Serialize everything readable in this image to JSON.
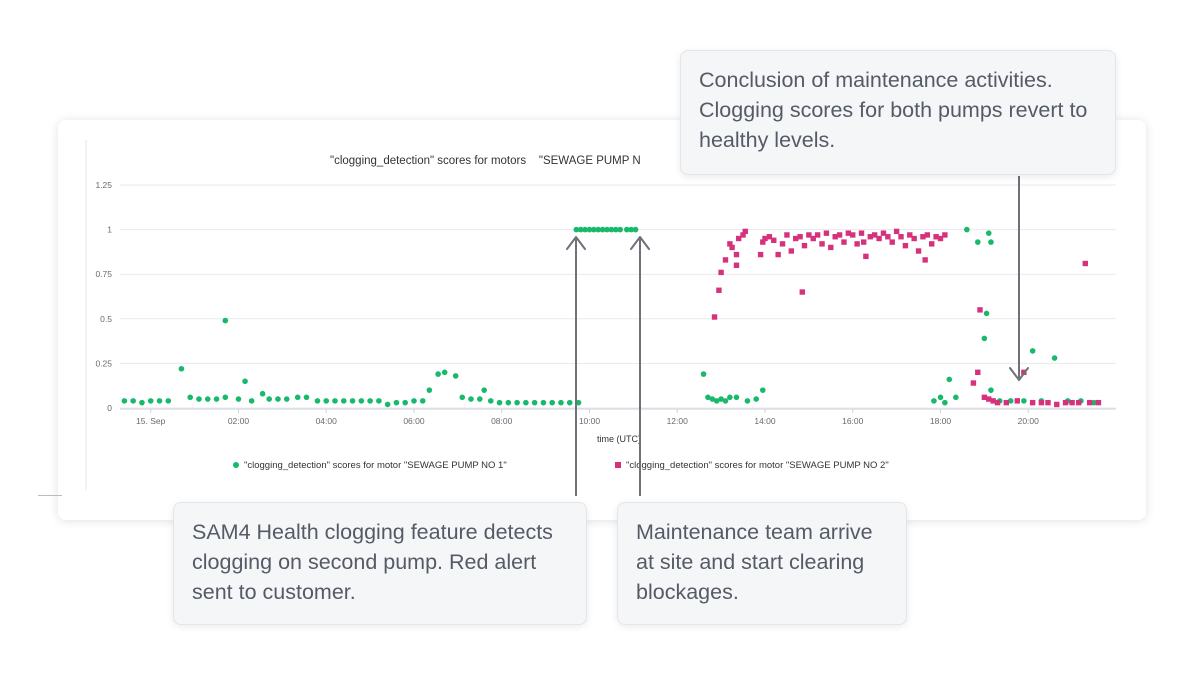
{
  "chart_data": {
    "type": "scatter",
    "title": "\"clogging_detection\" scores for motors    \"SEWAGE PUMP N",
    "xlabel": "time (UTC)",
    "ylabel": "",
    "x_unit": "hours",
    "xlim": [
      -0.7,
      22.0
    ],
    "ylim": [
      0,
      1.25
    ],
    "grid": true,
    "legend_position": "bottom",
    "y_ticks": [
      "0",
      "0.25",
      "0.5",
      "0.75",
      "1",
      "1.25"
    ],
    "x_ticks": [
      {
        "value": 0,
        "label": "15. Sep"
      },
      {
        "value": 2,
        "label": "02:00"
      },
      {
        "value": 4,
        "label": "04:00"
      },
      {
        "value": 6,
        "label": "06:00"
      },
      {
        "value": 8,
        "label": "08:00"
      },
      {
        "value": 10,
        "label": "10:00"
      },
      {
        "value": 12,
        "label": "12:00"
      },
      {
        "value": 14,
        "label": "14:00"
      },
      {
        "value": 16,
        "label": "16:00"
      },
      {
        "value": 18,
        "label": "18:00"
      },
      {
        "value": 20,
        "label": "20:00"
      }
    ],
    "series": [
      {
        "name": "\"clogging_detection\" scores for motor \"SEWAGE PUMP NO 1\"",
        "color": "#18b96b",
        "marker": "circle",
        "points": [
          [
            -0.6,
            0.04
          ],
          [
            -0.4,
            0.04
          ],
          [
            -0.2,
            0.03
          ],
          [
            0.0,
            0.04
          ],
          [
            0.2,
            0.04
          ],
          [
            0.4,
            0.04
          ],
          [
            0.7,
            0.22
          ],
          [
            0.9,
            0.06
          ],
          [
            1.1,
            0.05
          ],
          [
            1.3,
            0.05
          ],
          [
            1.5,
            0.05
          ],
          [
            1.7,
            0.06
          ],
          [
            2.0,
            0.05
          ],
          [
            1.7,
            0.49
          ],
          [
            2.15,
            0.15
          ],
          [
            2.3,
            0.04
          ],
          [
            2.55,
            0.08
          ],
          [
            2.7,
            0.05
          ],
          [
            2.9,
            0.05
          ],
          [
            3.1,
            0.05
          ],
          [
            3.35,
            0.06
          ],
          [
            3.55,
            0.06
          ],
          [
            3.8,
            0.04
          ],
          [
            4.0,
            0.04
          ],
          [
            4.2,
            0.04
          ],
          [
            4.4,
            0.04
          ],
          [
            4.6,
            0.04
          ],
          [
            4.8,
            0.04
          ],
          [
            5.0,
            0.04
          ],
          [
            5.2,
            0.04
          ],
          [
            5.4,
            0.02
          ],
          [
            5.6,
            0.03
          ],
          [
            5.8,
            0.03
          ],
          [
            6.0,
            0.04
          ],
          [
            6.2,
            0.04
          ],
          [
            6.35,
            0.1
          ],
          [
            6.55,
            0.19
          ],
          [
            6.7,
            0.2
          ],
          [
            6.95,
            0.18
          ],
          [
            7.1,
            0.06
          ],
          [
            7.3,
            0.05
          ],
          [
            7.5,
            0.05
          ],
          [
            7.6,
            0.1
          ],
          [
            7.75,
            0.04
          ],
          [
            7.95,
            0.03
          ],
          [
            8.15,
            0.03
          ],
          [
            8.35,
            0.03
          ],
          [
            8.55,
            0.03
          ],
          [
            8.75,
            0.03
          ],
          [
            8.95,
            0.03
          ],
          [
            9.15,
            0.03
          ],
          [
            9.35,
            0.03
          ],
          [
            9.55,
            0.03
          ],
          [
            9.75,
            0.03
          ],
          [
            9.7,
            1.0
          ],
          [
            9.8,
            1.0
          ],
          [
            9.9,
            1.0
          ],
          [
            10.0,
            1.0
          ],
          [
            10.1,
            1.0
          ],
          [
            10.2,
            1.0
          ],
          [
            10.3,
            1.0
          ],
          [
            10.4,
            1.0
          ],
          [
            10.5,
            1.0
          ],
          [
            10.6,
            1.0
          ],
          [
            10.7,
            1.0
          ],
          [
            10.85,
            1.0
          ],
          [
            10.95,
            1.0
          ],
          [
            11.05,
            1.0
          ],
          [
            12.6,
            0.19
          ],
          [
            12.7,
            0.06
          ],
          [
            12.8,
            0.05
          ],
          [
            12.9,
            0.04
          ],
          [
            13.0,
            0.05
          ],
          [
            13.1,
            0.04
          ],
          [
            13.2,
            0.06
          ],
          [
            13.35,
            0.06
          ],
          [
            13.6,
            0.04
          ],
          [
            13.8,
            0.05
          ],
          [
            13.95,
            0.1
          ],
          [
            17.85,
            0.04
          ],
          [
            18.0,
            0.06
          ],
          [
            18.2,
            0.16
          ],
          [
            18.1,
            0.03
          ],
          [
            18.35,
            0.06
          ],
          [
            18.6,
            1.0
          ],
          [
            18.85,
            0.93
          ],
          [
            19.1,
            0.98
          ],
          [
            19.15,
            0.93
          ],
          [
            19.05,
            0.53
          ],
          [
            19.0,
            0.39
          ],
          [
            19.15,
            0.1
          ],
          [
            19.35,
            0.04
          ],
          [
            19.6,
            0.04
          ],
          [
            19.9,
            0.04
          ],
          [
            20.1,
            0.32
          ],
          [
            20.3,
            0.04
          ],
          [
            20.6,
            0.28
          ],
          [
            20.9,
            0.04
          ],
          [
            21.2,
            0.04
          ],
          [
            21.5,
            0.03
          ]
        ]
      },
      {
        "name": "\"clogging_detection\" scores for motor \"SEWAGE PUMP NO 2\"",
        "color": "#d6317d",
        "marker": "square",
        "points": [
          [
            12.85,
            0.51
          ],
          [
            12.95,
            0.66
          ],
          [
            13.0,
            0.76
          ],
          [
            13.1,
            0.83
          ],
          [
            13.2,
            0.92
          ],
          [
            13.25,
            0.9
          ],
          [
            13.35,
            0.8
          ],
          [
            13.4,
            0.95
          ],
          [
            13.5,
            0.97
          ],
          [
            13.55,
            0.99
          ],
          [
            13.35,
            0.86
          ],
          [
            13.9,
            0.86
          ],
          [
            13.95,
            0.93
          ],
          [
            14.0,
            0.95
          ],
          [
            14.1,
            0.96
          ],
          [
            14.2,
            0.94
          ],
          [
            14.3,
            0.86
          ],
          [
            14.4,
            0.92
          ],
          [
            14.5,
            0.97
          ],
          [
            14.6,
            0.88
          ],
          [
            14.7,
            0.95
          ],
          [
            14.8,
            0.96
          ],
          [
            14.9,
            0.91
          ],
          [
            15.0,
            0.97
          ],
          [
            14.85,
            0.65
          ],
          [
            15.1,
            0.95
          ],
          [
            15.2,
            0.97
          ],
          [
            15.3,
            0.92
          ],
          [
            15.4,
            0.98
          ],
          [
            15.5,
            0.9
          ],
          [
            15.6,
            0.96
          ],
          [
            15.7,
            0.97
          ],
          [
            15.8,
            0.93
          ],
          [
            15.9,
            0.98
          ],
          [
            16.0,
            0.97
          ],
          [
            16.1,
            0.92
          ],
          [
            16.2,
            0.98
          ],
          [
            16.3,
            0.85
          ],
          [
            16.4,
            0.96
          ],
          [
            16.5,
            0.97
          ],
          [
            16.6,
            0.95
          ],
          [
            16.7,
            0.98
          ],
          [
            16.8,
            0.96
          ],
          [
            16.9,
            0.93
          ],
          [
            17.0,
            0.99
          ],
          [
            17.1,
            0.96
          ],
          [
            17.2,
            0.91
          ],
          [
            17.3,
            0.97
          ],
          [
            17.4,
            0.95
          ],
          [
            17.5,
            0.88
          ],
          [
            17.6,
            0.96
          ],
          [
            17.7,
            0.97
          ],
          [
            17.8,
            0.92
          ],
          [
            17.9,
            0.96
          ],
          [
            18.0,
            0.95
          ],
          [
            18.1,
            0.97
          ],
          [
            17.65,
            0.83
          ],
          [
            16.25,
            0.93
          ],
          [
            18.75,
            0.14
          ],
          [
            18.85,
            0.2
          ],
          [
            18.9,
            0.55
          ],
          [
            19.0,
            0.06
          ],
          [
            19.1,
            0.05
          ],
          [
            19.2,
            0.04
          ],
          [
            19.3,
            0.03
          ],
          [
            19.5,
            0.03
          ],
          [
            19.75,
            0.04
          ],
          [
            19.9,
            0.2
          ],
          [
            20.1,
            0.03
          ],
          [
            20.3,
            0.03
          ],
          [
            20.45,
            0.03
          ],
          [
            20.65,
            0.02
          ],
          [
            20.85,
            0.03
          ],
          [
            21.0,
            0.03
          ],
          [
            21.15,
            0.03
          ],
          [
            21.3,
            0.81
          ],
          [
            21.4,
            0.03
          ],
          [
            21.6,
            0.03
          ]
        ]
      }
    ]
  },
  "callouts": {
    "top": "Conclusion of maintenance activities. Clogging scores for both pumps revert to healthy levels.",
    "left": "SAM4 Health clogging feature detects clogging on second pump. Red alert sent to customer.",
    "right": "Maintenance team arrive at site and start clearing blockages."
  },
  "colors": {
    "grid": "#e8e9ec",
    "axis_text": "#666a70",
    "arrow": "#6e7178"
  }
}
